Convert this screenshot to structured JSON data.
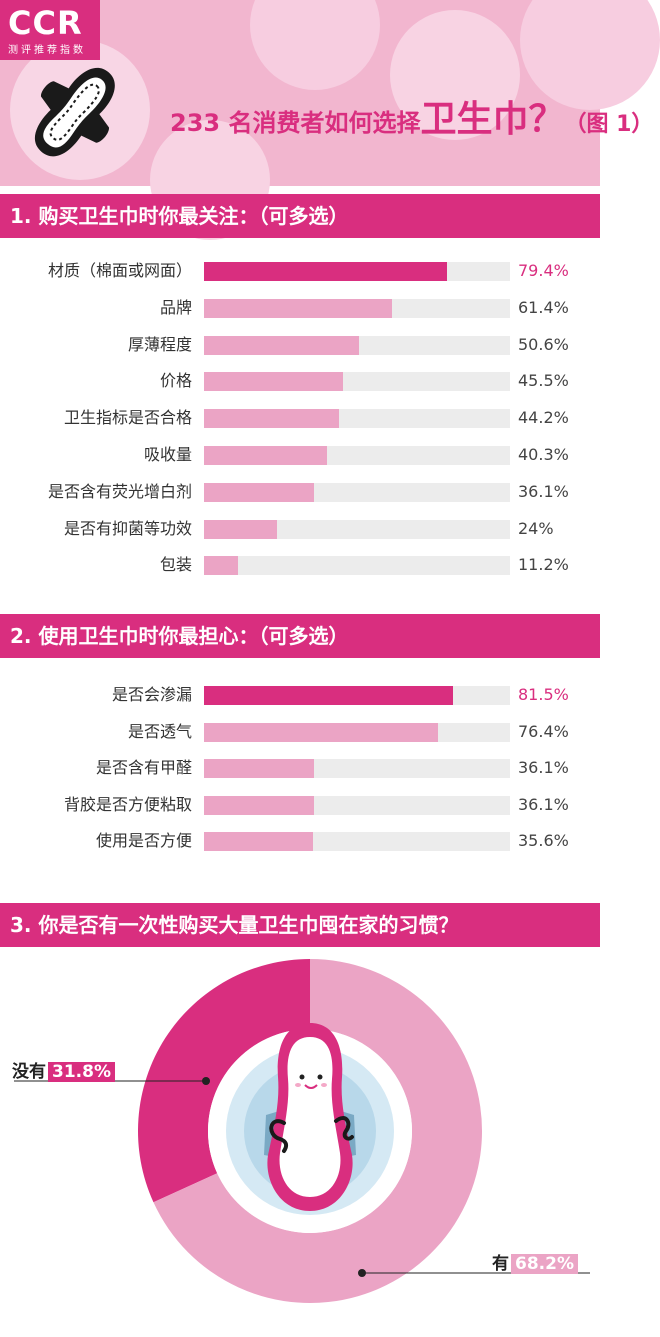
{
  "header": {
    "logo_main": "CCR",
    "logo_sub": "测评推荐指数",
    "title_part1": "233 名消费者如何选择",
    "title_part2": "卫生巾？",
    "title_part3": "（图 1）",
    "icon": "sanitary-pad-icon"
  },
  "colors": {
    "accent": "#d92e7f",
    "light": "#eba4c5",
    "track": "#ececec",
    "header_bg": "#f2b6cf"
  },
  "section1": {
    "title": "1. 购买卫生巾时你最关注：（可多选）"
  },
  "section2": {
    "title": "2. 使用卫生巾时你最担心：（可多选）"
  },
  "section3": {
    "title": "3. 你是否有一次性购买大量卫生巾囤在家的习惯？"
  },
  "chart_data": [
    {
      "type": "bar",
      "orientation": "horizontal",
      "categories": [
        "材质（棉面或网面）",
        "品牌",
        "厚薄程度",
        "价格",
        "卫生指标是否合格",
        "吸收量",
        "是否含有荧光增白剂",
        "是否有抑菌等功效",
        "包装"
      ],
      "values": [
        79.4,
        61.4,
        50.6,
        45.5,
        44.2,
        40.3,
        36.1,
        24,
        11.2
      ],
      "labels": [
        "79.4%",
        "61.4%",
        "50.6%",
        "45.5%",
        "44.2%",
        "40.3%",
        "36.1%",
        "24%",
        "11.2%"
      ],
      "xlim": [
        0,
        100
      ],
      "grid": false
    },
    {
      "type": "bar",
      "orientation": "horizontal",
      "categories": [
        "是否会渗漏",
        "是否透气",
        "是否含有甲醛",
        "背胶是否方便粘取",
        "使用是否方便"
      ],
      "values": [
        81.5,
        76.4,
        36.1,
        36.1,
        35.6
      ],
      "labels": [
        "81.5%",
        "76.4%",
        "36.1%",
        "36.1%",
        "35.6%"
      ],
      "xlim": [
        0,
        100
      ],
      "grid": false
    },
    {
      "type": "pie",
      "style": "donut",
      "categories": [
        "没有",
        "有"
      ],
      "values": [
        31.8,
        68.2
      ],
      "labels": [
        "31.8%",
        "68.2%"
      ],
      "colors": [
        "#d92e7f",
        "#eba4c5"
      ]
    }
  ]
}
